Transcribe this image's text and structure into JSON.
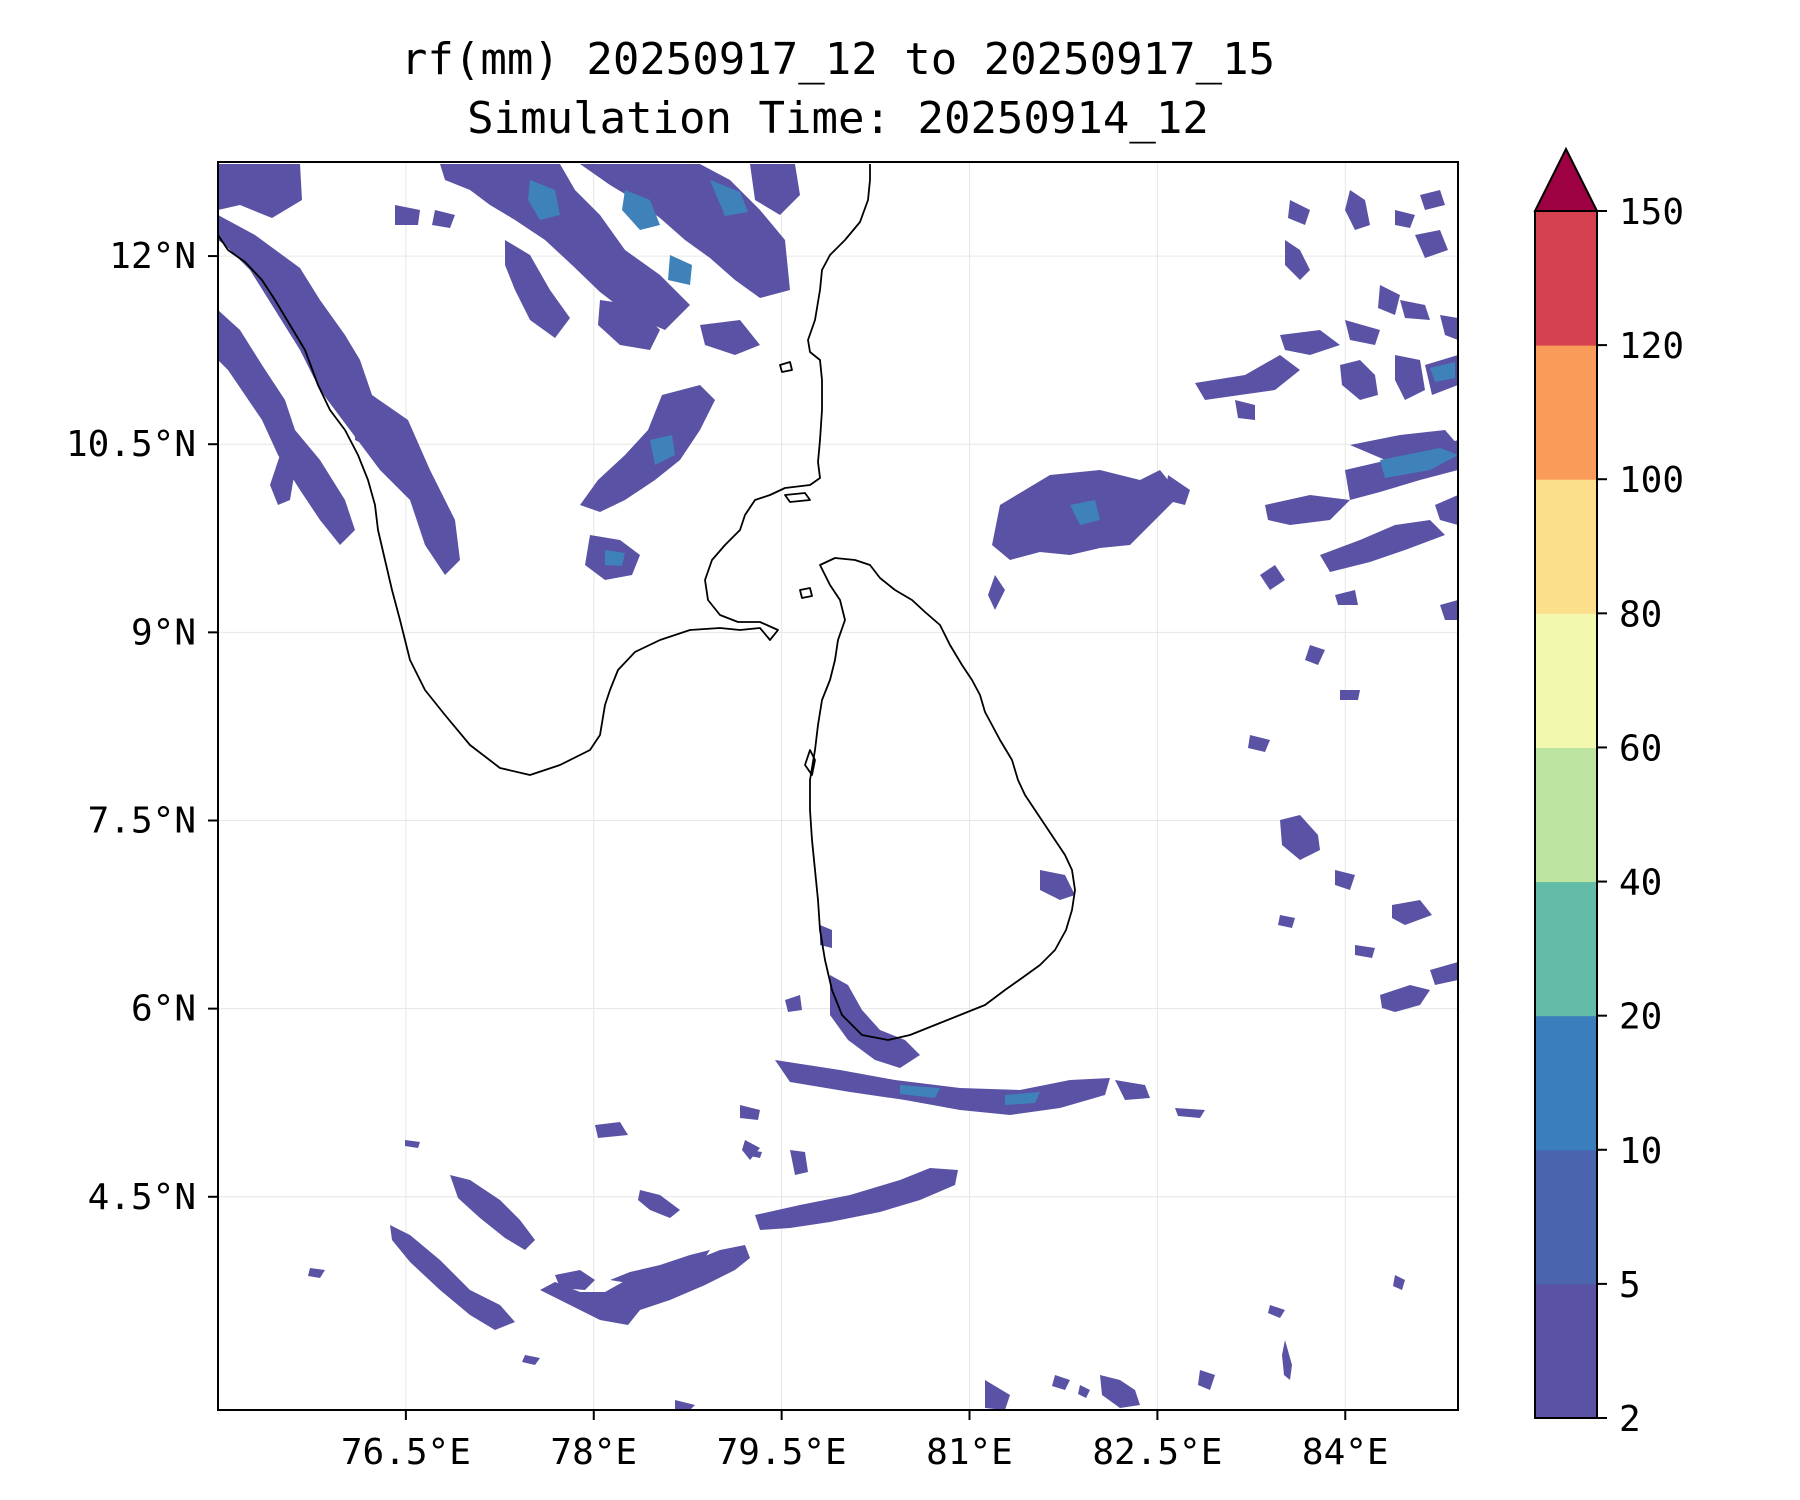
{
  "title": {
    "line1": "rf(mm) 20250917_12 to 20250917_15",
    "line2": "Simulation Time: 20250914_12"
  },
  "map": {
    "lon_range": [
      75.0,
      84.9
    ],
    "lat_range": [
      2.8,
      12.75
    ],
    "lon_ticks": [
      {
        "value": 76.5,
        "label": "76.5°E"
      },
      {
        "value": 78.0,
        "label": "78°E"
      },
      {
        "value": 79.5,
        "label": "79.5°E"
      },
      {
        "value": 81.0,
        "label": "81°E"
      },
      {
        "value": 82.5,
        "label": "82.5°E"
      },
      {
        "value": 84.0,
        "label": "84°E"
      }
    ],
    "lat_ticks": [
      {
        "value": 12.0,
        "label": "12°N"
      },
      {
        "value": 10.5,
        "label": "10.5°N"
      },
      {
        "value": 9.0,
        "label": "9°N"
      },
      {
        "value": 7.5,
        "label": "7.5°N"
      },
      {
        "value": 6.0,
        "label": "6°N"
      },
      {
        "value": 4.5,
        "label": "4.5°N"
      }
    ],
    "gridlines": true
  },
  "colorbar": {
    "bins": [
      {
        "from": 2,
        "to": 5,
        "color": "#5a52a4"
      },
      {
        "from": 5,
        "to": 10,
        "color": "#4a64ae"
      },
      {
        "from": 10,
        "to": 20,
        "color": "#3a7fbc"
      },
      {
        "from": 20,
        "to": 40,
        "color": "#62bca8"
      },
      {
        "from": 40,
        "to": 60,
        "color": "#bde4a0"
      },
      {
        "from": 60,
        "to": 80,
        "color": "#f2f9af"
      },
      {
        "from": 80,
        "to": 100,
        "color": "#fbdf8b"
      },
      {
        "from": 100,
        "to": 120,
        "color": "#f99c5a"
      },
      {
        "from": 120,
        "to": 150,
        "color": "#d5404e"
      }
    ],
    "extend_color": "#9e0142",
    "tick_labels": [
      "2",
      "5",
      "10",
      "20",
      "40",
      "60",
      "80",
      "100",
      "120",
      "150"
    ]
  }
}
